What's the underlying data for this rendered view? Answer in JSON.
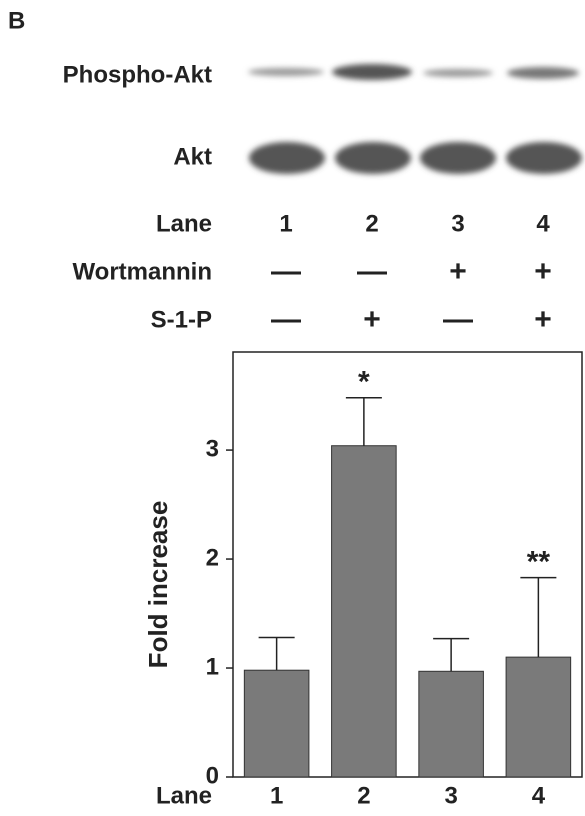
{
  "panel_label": "B",
  "blot": {
    "rows": [
      "Phospho-Akt",
      "Akt"
    ]
  },
  "conditions": {
    "rows": [
      {
        "label": "Lane",
        "cells": [
          "1",
          "2",
          "3",
          "4"
        ]
      },
      {
        "label": "Wortmannin",
        "cells": [
          "—",
          "—",
          "+",
          "+"
        ]
      },
      {
        "label": "S-1-P",
        "cells": [
          "—",
          "+",
          "—",
          "+"
        ]
      }
    ]
  },
  "chart_data": {
    "type": "bar",
    "x_label": "Lane",
    "y_label": "Fold increase",
    "categories": [
      "1",
      "2",
      "3",
      "4"
    ],
    "values": [
      0.98,
      3.04,
      0.97,
      1.1
    ],
    "errors": [
      0.3,
      0.44,
      0.3,
      0.73
    ],
    "color": "#7a7a7a",
    "ylim": [
      0,
      3.9
    ],
    "yticks": [
      0,
      1,
      2,
      3
    ],
    "annotations": [
      {
        "text": "*",
        "category": "2"
      },
      {
        "text": "**",
        "category": "4"
      }
    ]
  }
}
